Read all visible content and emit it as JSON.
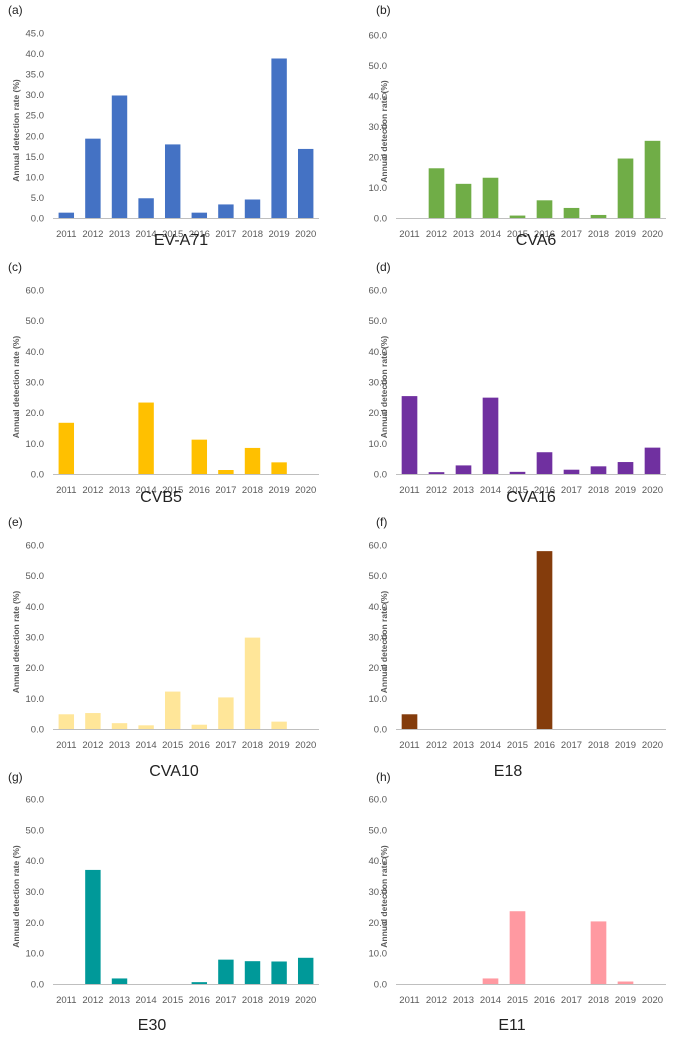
{
  "chart_data": [
    {
      "panel": "(a)",
      "type": "bar",
      "title": "EV-A71",
      "ylabel": "Annual detection rate (%)",
      "categories": [
        "2011",
        "2012",
        "2013",
        "2014",
        "2015",
        "2016",
        "2017",
        "2018",
        "2019",
        "2020"
      ],
      "values": [
        1.3,
        19.3,
        29.8,
        4.8,
        17.9,
        1.3,
        3.3,
        4.5,
        38.8,
        16.8
      ],
      "ylim": [
        0,
        45
      ],
      "yticks": [
        "0.0",
        "5.0",
        "10.0",
        "15.0",
        "20.0",
        "25.0",
        "30.0",
        "35.0",
        "40.0",
        "45.0"
      ],
      "color": "#4472C4",
      "grid": false,
      "legend": "none"
    },
    {
      "panel": "(b)",
      "type": "bar",
      "title": "CVA6",
      "ylabel": "Annual detection rate (%)",
      "categories": [
        "2011",
        "2012",
        "2013",
        "2014",
        "2015",
        "2016",
        "2017",
        "2018",
        "2019",
        "2020"
      ],
      "values": [
        0,
        16.3,
        11.2,
        13.2,
        0.8,
        5.8,
        3.3,
        1.0,
        19.5,
        25.3
      ],
      "ylim": [
        0,
        60
      ],
      "yticks": [
        "0.0",
        "10.0",
        "20.0",
        "30.0",
        "40.0",
        "50.0",
        "60.0"
      ],
      "color": "#70AD47",
      "grid": false,
      "legend": "none"
    },
    {
      "panel": "(c)",
      "type": "bar",
      "title": "CVB5",
      "ylabel": "Annual detection rate (%)",
      "categories": [
        "2011",
        "2012",
        "2013",
        "2014",
        "2015",
        "2016",
        "2017",
        "2018",
        "2019",
        "2020"
      ],
      "values": [
        16.7,
        0,
        0,
        23.3,
        0,
        11.2,
        1.3,
        8.5,
        3.8,
        0
      ],
      "ylim": [
        0,
        60
      ],
      "yticks": [
        "0.0",
        "10.0",
        "20.0",
        "30.0",
        "40.0",
        "50.0",
        "60.0"
      ],
      "color": "#FFC000",
      "grid": false,
      "legend": "none"
    },
    {
      "panel": "(d)",
      "type": "bar",
      "title": "CVA16",
      "ylabel": "Annual detection rate (%)",
      "categories": [
        "2011",
        "2012",
        "2013",
        "2014",
        "2015",
        "2016",
        "2017",
        "2018",
        "2019",
        "2020"
      ],
      "values": [
        25.4,
        0.6,
        2.8,
        24.9,
        0.7,
        7.1,
        1.4,
        2.5,
        3.9,
        8.6
      ],
      "ylim": [
        0,
        60
      ],
      "yticks": [
        "0.0",
        "10.0",
        "20.0",
        "30.0",
        "40.0",
        "50.0",
        "60.0"
      ],
      "color": "#7030A0",
      "grid": false,
      "legend": "none"
    },
    {
      "panel": "(e)",
      "type": "bar",
      "title": "CVA10",
      "ylabel": "Annual detection rate (%)",
      "categories": [
        "2011",
        "2012",
        "2013",
        "2014",
        "2015",
        "2016",
        "2017",
        "2018",
        "2019",
        "2020"
      ],
      "values": [
        4.8,
        5.2,
        1.9,
        1.2,
        12.2,
        1.4,
        10.3,
        29.8,
        2.4,
        0
      ],
      "ylim": [
        0,
        60
      ],
      "yticks": [
        "0.0",
        "10.0",
        "20.0",
        "30.0",
        "40.0",
        "50.0",
        "60.0"
      ],
      "color": "#FFE699",
      "grid": false,
      "legend": "none"
    },
    {
      "panel": "(f)",
      "type": "bar",
      "title": "E18",
      "ylabel": "Annual detection rate (%)",
      "categories": [
        "2011",
        "2012",
        "2013",
        "2014",
        "2015",
        "2016",
        "2017",
        "2018",
        "2019",
        "2020"
      ],
      "values": [
        4.8,
        0,
        0,
        0,
        0,
        58.0,
        0,
        0,
        0,
        0
      ],
      "ylim": [
        0,
        60
      ],
      "yticks": [
        "0.0",
        "10.0",
        "20.0",
        "30.0",
        "40.0",
        "50.0",
        "60.0"
      ],
      "color": "#843C0C",
      "grid": false,
      "legend": "none"
    },
    {
      "panel": "(g)",
      "type": "bar",
      "title": "E30",
      "ylabel": "Annual detection rate (%)",
      "categories": [
        "2011",
        "2012",
        "2013",
        "2014",
        "2015",
        "2016",
        "2017",
        "2018",
        "2019",
        "2020"
      ],
      "values": [
        0,
        37.0,
        1.8,
        0,
        0,
        0.6,
        7.9,
        7.4,
        7.3,
        8.5
      ],
      "ylim": [
        0,
        60
      ],
      "yticks": [
        "0.0",
        "10.0",
        "20.0",
        "30.0",
        "40.0",
        "50.0",
        "60.0"
      ],
      "color": "#009999",
      "grid": false,
      "legend": "none"
    },
    {
      "panel": "(h)",
      "type": "bar",
      "title": "E11",
      "ylabel": "Annual detection rate (%)",
      "categories": [
        "2011",
        "2012",
        "2013",
        "2014",
        "2015",
        "2016",
        "2017",
        "2018",
        "2019",
        "2020"
      ],
      "values": [
        0,
        0,
        0,
        1.8,
        23.6,
        0,
        0,
        20.3,
        0.8,
        0
      ],
      "ylim": [
        0,
        60
      ],
      "yticks": [
        "0.0",
        "10.0",
        "20.0",
        "30.0",
        "40.0",
        "50.0",
        "60.0"
      ],
      "color": "#FF99A1",
      "grid": false,
      "legend": "none"
    }
  ]
}
